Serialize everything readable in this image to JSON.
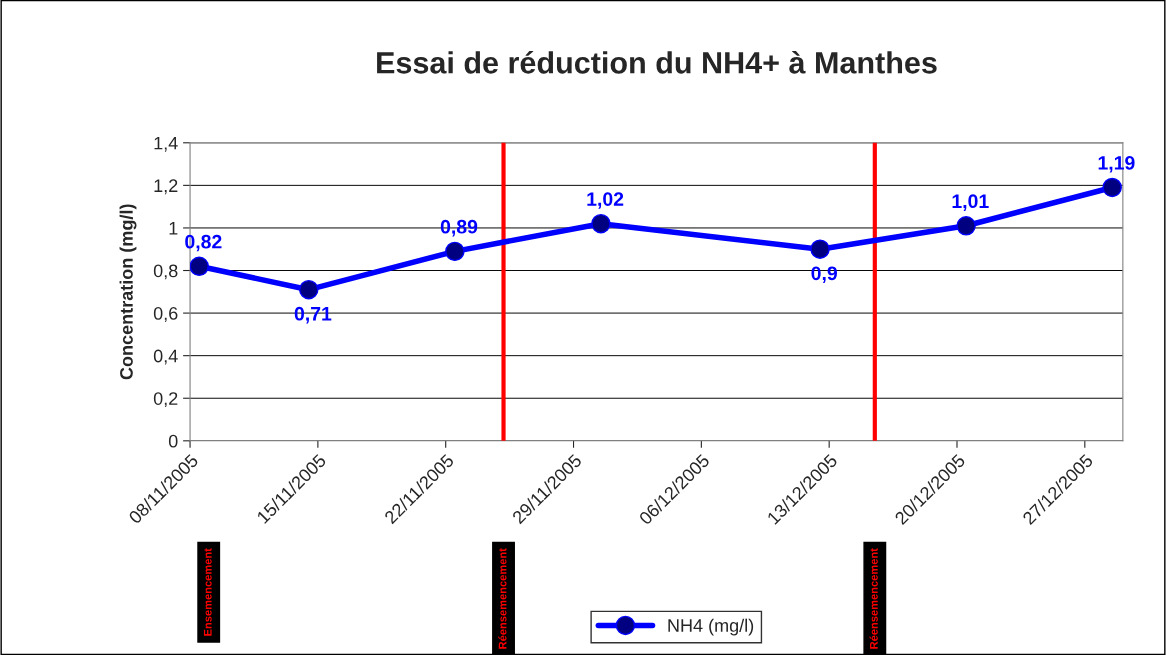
{
  "chart_data": {
    "type": "line",
    "title": "Essai de réduction du NH4+ à Manthes",
    "ylabel": "Concentration (mg/l)",
    "x": [
      "2005-11-08",
      "2005-11-14",
      "2005-11-22",
      "2005-11-30",
      "2005-12-12",
      "2005-12-20",
      "2005-12-28"
    ],
    "series": [
      {
        "name": "NH4 (mg/l)",
        "color": "#0000ff",
        "values": [
          0.82,
          0.71,
          0.89,
          1.02,
          0.9,
          1.01,
          1.19
        ],
        "value_labels": [
          "0,82",
          "0,71",
          "0,89",
          "1,02",
          "0,9",
          "1,01",
          "1,19"
        ]
      }
    ],
    "marker": "circle",
    "line_style": "solid",
    "xlim": [
      "2005-11-07T12:00",
      "2005-12-28T14:00"
    ],
    "xticks": [
      {
        "value": "2005-11-07T12:00",
        "label": "08/11/2005"
      },
      {
        "value": "2005-11-14T12:00",
        "label": "15/11/2005"
      },
      {
        "value": "2005-11-21T12:00",
        "label": "22/11/2005"
      },
      {
        "value": "2005-11-28T12:00",
        "label": "29/11/2005"
      },
      {
        "value": "2005-12-05T12:00",
        "label": "06/12/2005"
      },
      {
        "value": "2005-12-12T12:00",
        "label": "13/12/2005"
      },
      {
        "value": "2005-12-19T12:00",
        "label": "20/12/2005"
      },
      {
        "value": "2005-12-26T12:00",
        "label": "27/12/2005"
      }
    ],
    "ylim": [
      0,
      1.4
    ],
    "yticks": [
      0,
      {
        "value": 0.2,
        "label": "0,2"
      },
      {
        "value": 0.4,
        "label": "0,4"
      },
      {
        "value": 0.6,
        "label": "0,6"
      },
      {
        "value": 0.8,
        "label": "0,8"
      },
      1,
      {
        "value": 1.2,
        "label": "1,2"
      },
      {
        "value": 1.4,
        "label": "1,4"
      }
    ],
    "ref_lines": [
      {
        "axis": "x",
        "value": "2005-11-24T16:00",
        "label": "Réensemencement",
        "color": "#ff0000"
      },
      {
        "axis": "x",
        "value": "2005-12-15T00:00",
        "label": "Réensemencement",
        "color": "#ff0000"
      }
    ],
    "annotations": [
      "Ensemencement"
    ],
    "grid": "y",
    "legend": "bottom"
  }
}
